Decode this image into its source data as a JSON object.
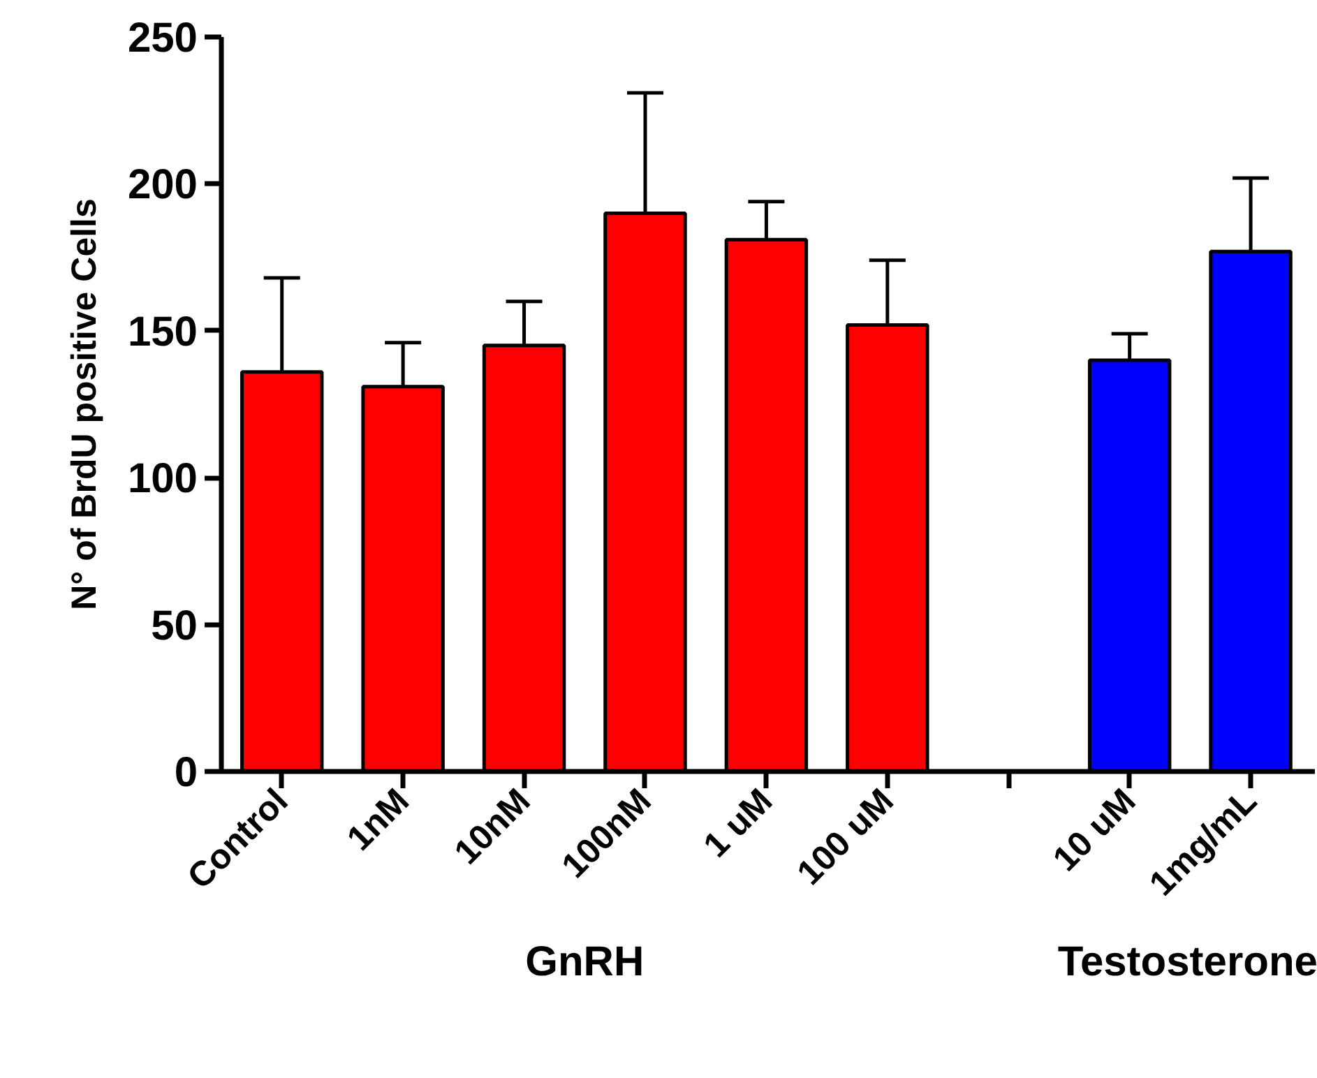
{
  "chart_data": {
    "type": "bar",
    "ylabel": "N° of BrdU positive Cells",
    "categories": [
      "Control",
      "1nM",
      "10nM",
      "100nM",
      "1 uM",
      "100 uM",
      null,
      "10 uM",
      "1mg/mL"
    ],
    "values": [
      136,
      131,
      145,
      190,
      181,
      152,
      null,
      140,
      177
    ],
    "errors": [
      [
        136,
        168
      ],
      [
        131,
        146
      ],
      [
        145,
        160
      ],
      [
        190,
        231
      ],
      [
        181,
        194
      ],
      [
        152,
        174
      ],
      null,
      [
        140,
        149
      ],
      [
        177,
        202
      ]
    ],
    "colors": [
      "#ff0000",
      "#ff0000",
      "#ff0000",
      "#ff0000",
      "#ff0000",
      "#ff0000",
      null,
      "#0000ff",
      "#0000ff"
    ],
    "ylim": [
      0,
      250
    ],
    "yticks": [
      0,
      50,
      100,
      150,
      200,
      250
    ],
    "grid": false,
    "annotations": [
      "GnRH",
      "Testosterone"
    ]
  }
}
